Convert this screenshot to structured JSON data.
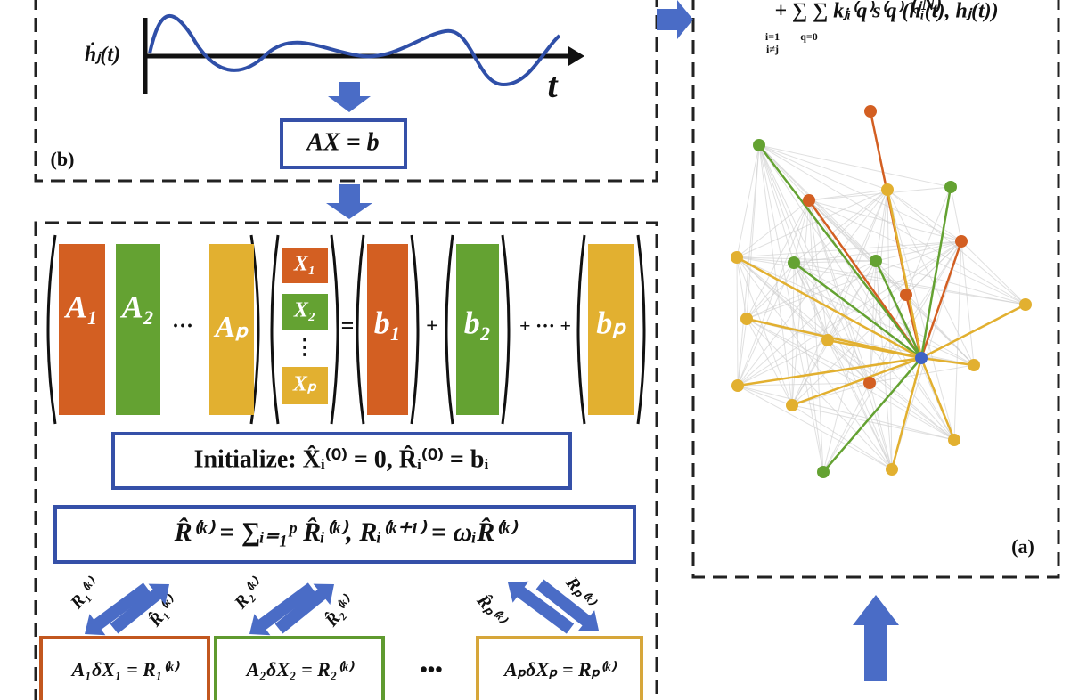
{
  "panel_b": {
    "label": "(b)",
    "y_axis_label": "ḣⱼ(t)",
    "x_axis_label": "t",
    "equation": "AX = b"
  },
  "panel_a": {
    "label": "(a)",
    "formula_top": "(ⱼN)",
    "formula": "+ ∑    ∑   kⱼᵢ⁽q⁾s⁽q⁾(hᵢ(t), hⱼ(t))",
    "sum_limits": [
      "i=1",
      "i≠j",
      "q=0"
    ]
  },
  "panel_c": {
    "matrix_blocks": [
      "A₁",
      "A₂",
      "···",
      "Aₚ"
    ],
    "unknowns": [
      "X₁",
      "X₂",
      "⋮",
      "Xₚ"
    ],
    "equals": "=",
    "rhs": [
      "b₁",
      "+",
      "b₂",
      "+ ··· +",
      "bₚ"
    ],
    "initialize": "Initialize:  X̂ᵢ⁽⁰⁾ = 0, R̂ᵢ⁽⁰⁾ = bᵢ",
    "residual": "R̂⁽ᵏ⁾ = ∑ᵢ₌₁ᵖ R̂ᵢ⁽ᵏ⁾, Rᵢ⁽ᵏ⁺¹⁾ = ωᵢR̂⁽ᵏ⁾",
    "arrow_labels": [
      [
        "R₁⁽ᵏ⁾",
        "R̂₁⁽ᵏ⁾"
      ],
      [
        "R₂⁽ᵏ⁾",
        "R̂₂⁽ᵏ⁾"
      ],
      [
        "R̂ₚ⁽ᵏ⁾",
        "Rₚ⁽ᵏ⁾"
      ]
    ],
    "subproblems": [
      "A₁δX₁ = R₁⁽ᵏ⁾",
      "A₂δX₂ = R₂⁽ᵏ⁾",
      "•••",
      "AₚδXₚ = Rₚ⁽ᵏ⁾"
    ]
  }
}
